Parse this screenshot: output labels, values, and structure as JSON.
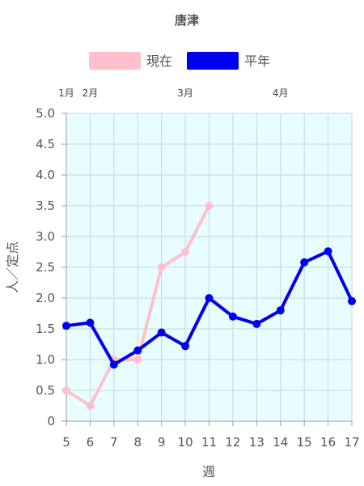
{
  "chart_data": {
    "type": "line",
    "title": "唐津",
    "xlabel": "週",
    "ylabel": "人／定点",
    "x": [
      5,
      6,
      7,
      8,
      9,
      10,
      11,
      12,
      13,
      14,
      15,
      16,
      17
    ],
    "xlim": [
      5,
      17
    ],
    "ylim": [
      0,
      5
    ],
    "yticks": [
      "0",
      "0.5",
      "1.0",
      "1.5",
      "2.0",
      "2.5",
      "3.0",
      "3.5",
      "4.0",
      "4.5",
      "5.0"
    ],
    "xticks": [
      "5",
      "6",
      "7",
      "8",
      "9",
      "10",
      "11",
      "12",
      "13",
      "14",
      "15",
      "16",
      "17"
    ],
    "months": [
      {
        "label": "1月",
        "x": 5
      },
      {
        "label": "2月",
        "x": 6
      },
      {
        "label": "3月",
        "x": 10
      },
      {
        "label": "4月",
        "x": 14
      }
    ],
    "grid": true,
    "legend_position": "top",
    "plot_background": "#e8fdff",
    "series": [
      {
        "name": "現在",
        "color": "#ffc0cb",
        "values": [
          0.5,
          0.25,
          1.0,
          1.0,
          2.5,
          2.75,
          3.5,
          null,
          null,
          null,
          null,
          null,
          null
        ]
      },
      {
        "name": "平年",
        "color": "#0000ee",
        "values": [
          1.55,
          1.6,
          0.92,
          1.15,
          1.44,
          1.22,
          2.0,
          1.7,
          1.58,
          1.8,
          2.58,
          2.76,
          1.95
        ]
      }
    ]
  }
}
